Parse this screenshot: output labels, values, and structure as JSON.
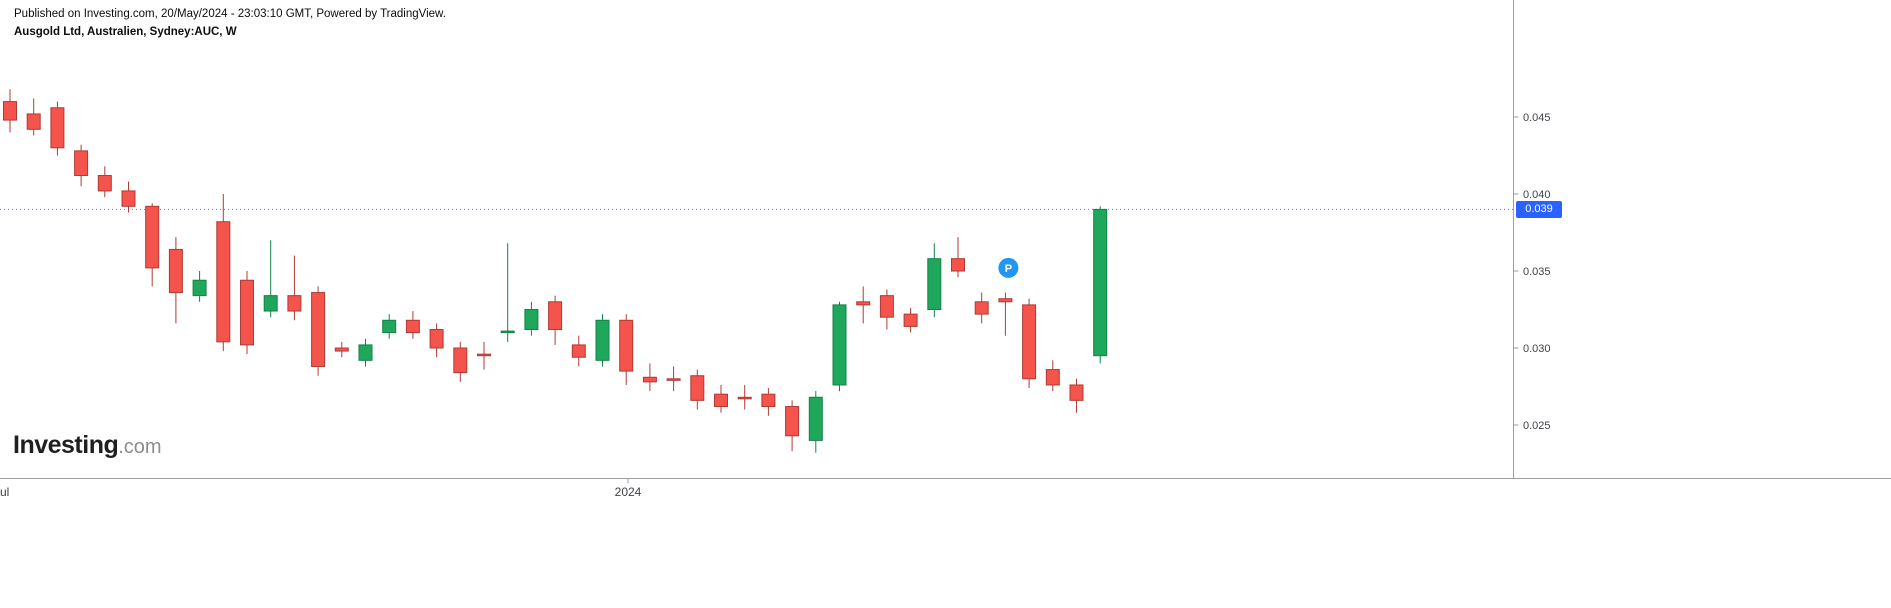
{
  "header": {
    "published_line": "Published on Investing.com, 20/May/2024 - 23:03:10 GMT, Powered by TradingView.",
    "instrument_line": "Ausgold Ltd, Australien, Sydney:AUC, W"
  },
  "logo": {
    "main": "Investing",
    "suffix": ".com"
  },
  "chart_data": {
    "type": "candlestick",
    "instrument": "Ausgold Ltd",
    "exchange": "Sydney",
    "symbol": "AUC",
    "interval": "W",
    "current_price": 0.039,
    "price_label": "0.039",
    "ylim": [
      0.0225,
      0.0475
    ],
    "price_line_color": "#2962FF",
    "up_color": "#1FA85B",
    "up_border": "#12824A",
    "down_color": "#F4544C",
    "down_border": "#B03A34",
    "axis_color": "#9B9EA4",
    "y_ticks": [
      {
        "label": "0.045",
        "value": 0.045
      },
      {
        "label": "0.040",
        "value": 0.04
      },
      {
        "label": "0.035",
        "value": 0.035
      },
      {
        "label": "0.030",
        "value": 0.03
      },
      {
        "label": "0.025",
        "value": 0.025
      }
    ],
    "x_ticks": [
      {
        "label": "Jul",
        "x": -6,
        "anchor": "start",
        "tick": false
      },
      {
        "label": "2024",
        "x": 628,
        "anchor": "middle",
        "tick": true
      }
    ],
    "marker": {
      "label": "P",
      "candle_index": 42,
      "price": 0.0352,
      "color": "#2196F3"
    },
    "candles": [
      {
        "o": 0.046,
        "h": 0.0468,
        "l": 0.044,
        "c": 0.0448
      },
      {
        "o": 0.0452,
        "h": 0.0462,
        "l": 0.0438,
        "c": 0.0442
      },
      {
        "o": 0.0456,
        "h": 0.046,
        "l": 0.0425,
        "c": 0.043
      },
      {
        "o": 0.0428,
        "h": 0.0432,
        "l": 0.0405,
        "c": 0.0412
      },
      {
        "o": 0.0412,
        "h": 0.0418,
        "l": 0.0398,
        "c": 0.0402
      },
      {
        "o": 0.0402,
        "h": 0.0408,
        "l": 0.0388,
        "c": 0.0392
      },
      {
        "o": 0.0392,
        "h": 0.0394,
        "l": 0.034,
        "c": 0.0352
      },
      {
        "o": 0.0364,
        "h": 0.0372,
        "l": 0.0316,
        "c": 0.0336
      },
      {
        "o": 0.0334,
        "h": 0.035,
        "l": 0.033,
        "c": 0.0344
      },
      {
        "o": 0.0382,
        "h": 0.04,
        "l": 0.0298,
        "c": 0.0304
      },
      {
        "o": 0.0344,
        "h": 0.035,
        "l": 0.0296,
        "c": 0.0302
      },
      {
        "o": 0.0324,
        "h": 0.037,
        "l": 0.032,
        "c": 0.0334
      },
      {
        "o": 0.0334,
        "h": 0.036,
        "l": 0.0318,
        "c": 0.0324
      },
      {
        "o": 0.0336,
        "h": 0.034,
        "l": 0.0282,
        "c": 0.0288
      },
      {
        "o": 0.03,
        "h": 0.0304,
        "l": 0.0294,
        "c": 0.0298
      },
      {
        "o": 0.0292,
        "h": 0.0306,
        "l": 0.0288,
        "c": 0.0302
      },
      {
        "o": 0.031,
        "h": 0.0322,
        "l": 0.0306,
        "c": 0.0318
      },
      {
        "o": 0.0318,
        "h": 0.0324,
        "l": 0.0306,
        "c": 0.031
      },
      {
        "o": 0.0312,
        "h": 0.0316,
        "l": 0.0294,
        "c": 0.03
      },
      {
        "o": 0.03,
        "h": 0.0304,
        "l": 0.0278,
        "c": 0.0284
      },
      {
        "o": 0.0296,
        "h": 0.0304,
        "l": 0.0286,
        "c": 0.0295
      },
      {
        "o": 0.031,
        "h": 0.0368,
        "l": 0.0304,
        "c": 0.0311
      },
      {
        "o": 0.0312,
        "h": 0.033,
        "l": 0.0308,
        "c": 0.0325
      },
      {
        "o": 0.033,
        "h": 0.0334,
        "l": 0.0302,
        "c": 0.0312
      },
      {
        "o": 0.0302,
        "h": 0.0308,
        "l": 0.0288,
        "c": 0.0294
      },
      {
        "o": 0.0292,
        "h": 0.0322,
        "l": 0.0288,
        "c": 0.0318
      },
      {
        "o": 0.0318,
        "h": 0.0322,
        "l": 0.0276,
        "c": 0.0285
      },
      {
        "o": 0.0281,
        "h": 0.029,
        "l": 0.0272,
        "c": 0.0278
      },
      {
        "o": 0.028,
        "h": 0.0288,
        "l": 0.0272,
        "c": 0.0279
      },
      {
        "o": 0.0282,
        "h": 0.0286,
        "l": 0.026,
        "c": 0.0266
      },
      {
        "o": 0.027,
        "h": 0.0276,
        "l": 0.0258,
        "c": 0.0262
      },
      {
        "o": 0.0268,
        "h": 0.0276,
        "l": 0.026,
        "c": 0.0267
      },
      {
        "o": 0.027,
        "h": 0.0274,
        "l": 0.0256,
        "c": 0.0262
      },
      {
        "o": 0.0262,
        "h": 0.0266,
        "l": 0.0233,
        "c": 0.0243
      },
      {
        "o": 0.024,
        "h": 0.0272,
        "l": 0.0232,
        "c": 0.0268
      },
      {
        "o": 0.0276,
        "h": 0.033,
        "l": 0.0272,
        "c": 0.0328
      },
      {
        "o": 0.033,
        "h": 0.034,
        "l": 0.0316,
        "c": 0.0328
      },
      {
        "o": 0.0334,
        "h": 0.0338,
        "l": 0.0312,
        "c": 0.032
      },
      {
        "o": 0.0322,
        "h": 0.0326,
        "l": 0.031,
        "c": 0.0314
      },
      {
        "o": 0.0325,
        "h": 0.0368,
        "l": 0.032,
        "c": 0.0358
      },
      {
        "o": 0.0358,
        "h": 0.0372,
        "l": 0.0346,
        "c": 0.035
      },
      {
        "o": 0.033,
        "h": 0.0336,
        "l": 0.0316,
        "c": 0.0322
      },
      {
        "o": 0.0332,
        "h": 0.0336,
        "l": 0.0308,
        "c": 0.033
      },
      {
        "o": 0.0328,
        "h": 0.0332,
        "l": 0.0274,
        "c": 0.028
      },
      {
        "o": 0.0286,
        "h": 0.0292,
        "l": 0.0272,
        "c": 0.0276
      },
      {
        "o": 0.0276,
        "h": 0.028,
        "l": 0.0258,
        "c": 0.0266
      },
      {
        "o": 0.0295,
        "h": 0.0392,
        "l": 0.029,
        "c": 0.039
      }
    ]
  }
}
